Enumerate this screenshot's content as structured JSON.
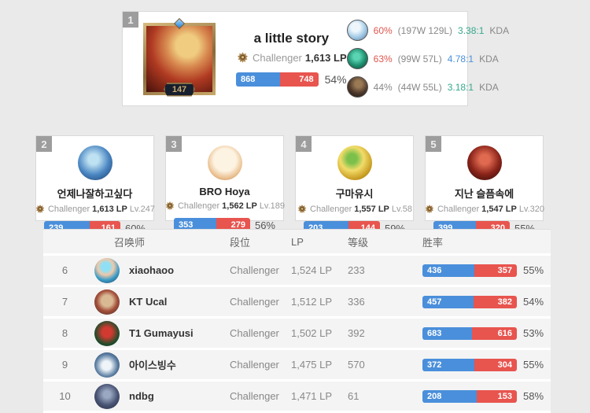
{
  "colors": {
    "win_blue": "#4a8fdb",
    "loss_red": "#e8544e",
    "kda_green": "#35a98c",
    "kda_blue": "#4a90d9",
    "winrate_red": "#e0564e",
    "winrate_gray": "#888888",
    "badge_gray": "#9d9d9d"
  },
  "top_card": {
    "rank": "1",
    "summoner_level": "147",
    "name": "a little story",
    "tier": "Challenger",
    "lp": "1,613 LP",
    "wins": 868,
    "losses": 748,
    "winrate": "54%",
    "champions": [
      {
        "winrate": "60%",
        "winrate_color": "#e0564e",
        "record": "(197W 129L)",
        "kda": "3.38:1",
        "kda_color": "#35a98c",
        "kda_label": "KDA"
      },
      {
        "winrate": "63%",
        "winrate_color": "#e0564e",
        "record": "(99W 57L)",
        "kda": "4.78:1",
        "kda_color": "#4a90d9",
        "kda_label": "KDA"
      },
      {
        "winrate": "44%",
        "winrate_color": "#888888",
        "record": "(44W 55L)",
        "kda": "3.18:1",
        "kda_color": "#35a98c",
        "kda_label": "KDA"
      }
    ]
  },
  "mini_cards": [
    {
      "rank": "2",
      "name": "언제나잘하고싶다",
      "tier": "Challenger",
      "lp": "1,613 LP",
      "level": "Lv.247",
      "wins": 239,
      "losses": 161,
      "winrate": "60%"
    },
    {
      "rank": "3",
      "name": "BRO Hoya",
      "tier": "Challenger",
      "lp": "1,562 LP",
      "level": "Lv.189",
      "wins": 353,
      "losses": 279,
      "winrate": "56%"
    },
    {
      "rank": "4",
      "name": "구마유시",
      "tier": "Challenger",
      "lp": "1,557 LP",
      "level": "Lv.58",
      "wins": 203,
      "losses": 144,
      "winrate": "59%"
    },
    {
      "rank": "5",
      "name": "지난 슬픔속에",
      "tier": "Challenger",
      "lp": "1,547 LP",
      "level": "Lv.320",
      "wins": 399,
      "losses": 320,
      "winrate": "55%"
    }
  ],
  "table": {
    "headers": {
      "summoner": "召唤师",
      "tier": "段位",
      "lp": "LP",
      "level": "等级",
      "winrate": "胜率"
    },
    "rows": [
      {
        "rank": "6",
        "name": "xiaohaoo",
        "tier": "Challenger",
        "lp": "1,524 LP",
        "level": "233",
        "wins": 436,
        "losses": 357,
        "winrate": "55%"
      },
      {
        "rank": "7",
        "name": "KT Ucal",
        "tier": "Challenger",
        "lp": "1,512 LP",
        "level": "336",
        "wins": 457,
        "losses": 382,
        "winrate": "54%"
      },
      {
        "rank": "8",
        "name": "T1 Gumayusi",
        "tier": "Challenger",
        "lp": "1,502 LP",
        "level": "392",
        "wins": 683,
        "losses": 616,
        "winrate": "53%"
      },
      {
        "rank": "9",
        "name": "아이스빙수",
        "tier": "Challenger",
        "lp": "1,475 LP",
        "level": "570",
        "wins": 372,
        "losses": 304,
        "winrate": "55%"
      },
      {
        "rank": "10",
        "name": "ndbg",
        "tier": "Challenger",
        "lp": "1,471 LP",
        "level": "61",
        "wins": 208,
        "losses": 153,
        "winrate": "58%"
      }
    ]
  }
}
